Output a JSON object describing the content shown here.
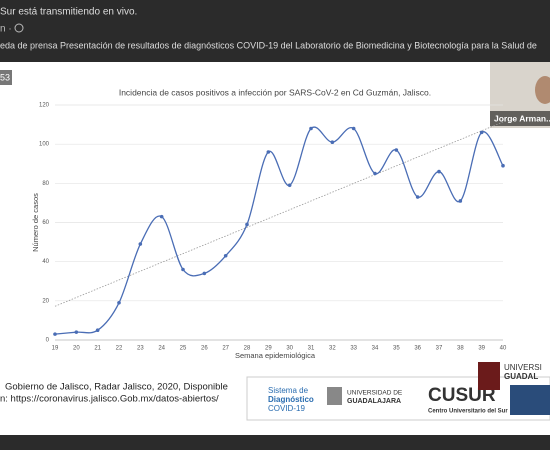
{
  "header": {
    "line1": "Sur está transmitiendo en vivo.",
    "line2": "n ·",
    "line3": "eda de prensa Presentación de resultados de diagnósticos COVID-19 del Laboratorio de Biomedicina y Biotecnología para la Salud de"
  },
  "badge": "53",
  "participant": "Jorge Arman...",
  "source": {
    "line1": "Gobierno de Jalisco, Radar Jalisco, 2020, Disponible",
    "line2": "n: https://coronavirus.jalisco.Gob.mx/datos-abiertos/"
  },
  "logos": {
    "sistema1": "Sistema de",
    "sistema2": "Diagnóstico",
    "sistema3": "COVID-19",
    "udg1": "UNIVERSIDAD DE",
    "udg2": "GUADALAJARA",
    "cusur": "CUSUR",
    "cusur_sub": "Centro Universitario del Sur",
    "udg_right1": "UNIVERSI",
    "udg_right2": "GUADAL"
  },
  "chart_data": {
    "type": "line",
    "title": "Incidencia de casos positivos a infección por SARS-CoV-2 en Cd Guzmán, Jalisco.",
    "x_label": "Semana epidemiológica",
    "y_label": "Número de casos",
    "categories": [
      "19",
      "20",
      "21",
      "22",
      "23",
      "24",
      "25",
      "26",
      "27",
      "28",
      "29",
      "30",
      "31",
      "32",
      "33",
      "34",
      "35",
      "36",
      "37",
      "38",
      "39",
      "40"
    ],
    "values": [
      3,
      4,
      5,
      19,
      49,
      63,
      36,
      34,
      43,
      59,
      96,
      79,
      108,
      101,
      108,
      85,
      97,
      73,
      86,
      71,
      106,
      89
    ],
    "color": "#4a6db5",
    "trendline": true,
    "ylim": [
      0,
      120
    ],
    "yticks": [
      0,
      20,
      40,
      60,
      80,
      100,
      120
    ]
  }
}
